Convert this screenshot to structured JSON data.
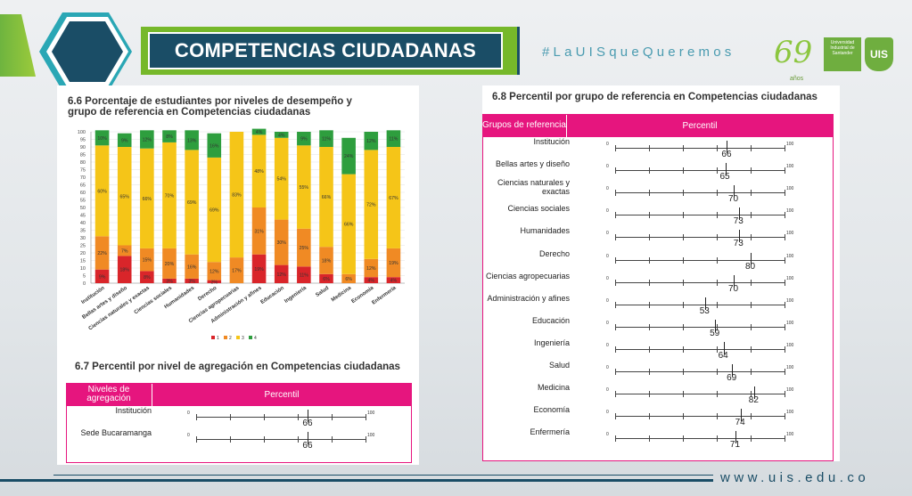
{
  "header": {
    "title": "COMPETENCIAS CIUDADANAS",
    "hashtag": "#LaUISqueQueremos",
    "anniversary": "69",
    "anniversary_sub": "años",
    "university": "Universidad Industrial de Santander",
    "shield": "UIS"
  },
  "chart66": {
    "title": "6.6 Porcentaje de estudiantes por niveles de desempeño y grupo de referencia en Competencias ciudadanas"
  },
  "chart_data": {
    "type": "bar",
    "stacked": true,
    "ylim": [
      0,
      100
    ],
    "yticks": [
      0,
      5,
      10,
      15,
      20,
      25,
      30,
      35,
      40,
      45,
      50,
      55,
      60,
      65,
      70,
      75,
      80,
      85,
      90,
      95,
      100
    ],
    "categories": [
      "Institución",
      "Bellas artes y diseño",
      "Ciencias naturales y exactas",
      "Ciencias sociales",
      "Humanidades",
      "Derecho",
      "Ciencias agropecuarias",
      "Administración y afines",
      "Educación",
      "Ingeniería",
      "Salud",
      "Medicina",
      "Economía",
      "Enfermería"
    ],
    "series": [
      {
        "name": "1",
        "color": "#d9252a",
        "values": [
          9,
          18,
          8,
          3,
          3,
          2,
          0,
          19,
          12,
          11,
          6,
          0,
          4,
          4
        ]
      },
      {
        "name": "2",
        "color": "#f08a24",
        "values": [
          22,
          7,
          15,
          20,
          16,
          12,
          17,
          31,
          30,
          25,
          18,
          6,
          12,
          19
        ]
      },
      {
        "name": "3",
        "color": "#f5c518",
        "values": [
          60,
          65,
          66,
          70,
          69,
          69,
          83,
          48,
          54,
          55,
          66,
          66,
          72,
          67
        ]
      },
      {
        "name": "4",
        "color": "#2e9e3e",
        "values": [
          10,
          9,
          12,
          8,
          13,
          16,
          0,
          4,
          4,
          9,
          11,
          24,
          12,
          11
        ]
      }
    ],
    "labels": [
      [
        "9%",
        "18%",
        "8%",
        "3%",
        "3%",
        "2%",
        "",
        "19%",
        "12%",
        "11%",
        "6%",
        "",
        "4%",
        "4%"
      ],
      [
        "22%",
        "7%",
        "15%",
        "20%",
        "16%",
        "12%",
        "17%",
        "31%",
        "30%",
        "25%",
        "18%",
        "6%",
        "12%",
        "19%"
      ],
      [
        "60%",
        "65%",
        "66%",
        "70%",
        "69%",
        "69%",
        "83%",
        "48%",
        "54%",
        "55%",
        "66%",
        "66%",
        "72%",
        "67%"
      ],
      [
        "10%",
        "9%",
        "12%",
        "8%",
        "13%",
        "16%",
        "",
        "4%",
        "4%",
        "9%",
        "11%",
        "24%",
        "12%",
        "11%"
      ]
    ],
    "legend_position": "bottom"
  },
  "table67": {
    "title": "6.7 Percentil por nivel de agregación en Competencias ciudadanas",
    "col1": "Niveles de agregación",
    "col2": "Percentil",
    "scale_min": "0",
    "scale_max": "100",
    "rows": [
      {
        "label": "Institución",
        "value": 66
      },
      {
        "label": "Sede Bucaramanga",
        "value": 66
      }
    ]
  },
  "table68": {
    "title": "6.8 Percentil por grupo de referencia en Competencias ciudadanas",
    "col1": "Grupos de referencia",
    "col2": "Percentil",
    "scale_min": "0",
    "scale_max": "100",
    "rows": [
      {
        "label": "Institución",
        "value": 66
      },
      {
        "label": "Bellas artes y diseño",
        "value": 65
      },
      {
        "label": "Ciencias naturales y exactas",
        "value": 70
      },
      {
        "label": "Ciencias sociales",
        "value": 73
      },
      {
        "label": "Humanidades",
        "value": 73
      },
      {
        "label": "Derecho",
        "value": 80
      },
      {
        "label": "Ciencias agropecuarias",
        "value": 70
      },
      {
        "label": "Administración y afines",
        "value": 53
      },
      {
        "label": "Educación",
        "value": 59
      },
      {
        "label": "Ingeniería",
        "value": 64
      },
      {
        "label": "Salud",
        "value": 69
      },
      {
        "label": "Medicina",
        "value": 82
      },
      {
        "label": "Economía",
        "value": 74
      },
      {
        "label": "Enfermería",
        "value": 71
      }
    ]
  },
  "footer": {
    "url": "www.uis.edu.co"
  }
}
